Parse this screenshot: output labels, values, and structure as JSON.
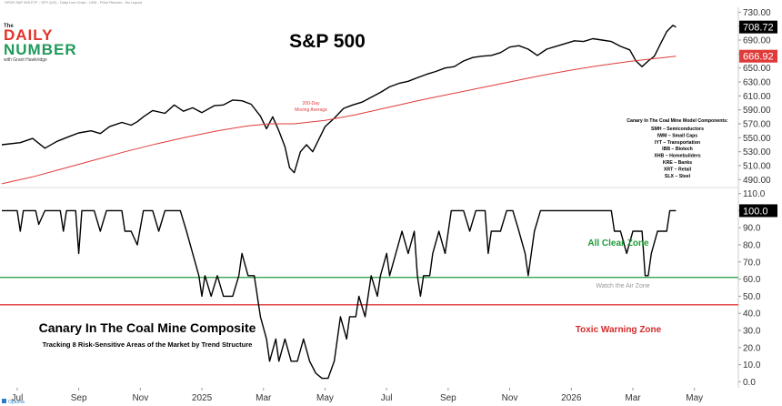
{
  "header_note": "SPDR S&P 500 ETF - SPY (US) - Daily Line Chart - USD - Price Returns - No Layout",
  "logo": {
    "the": "The",
    "line1": "DAILY",
    "line2": "NUMBER",
    "byline": "with Grant Hawkridge",
    "colors": {
      "daily": "#e4322b",
      "number": "#1f9a5a",
      "text": "#222222"
    }
  },
  "footer_brand": "Optuma",
  "chart_data": [
    {
      "type": "line",
      "title": "S&P 500",
      "ylim": [
        480,
        737
      ],
      "yticks": [
        490,
        510,
        530,
        550,
        570,
        590,
        610,
        630,
        650,
        670,
        690,
        710,
        730
      ],
      "grid": false,
      "x_labels": [
        "Jul",
        "Sep",
        "Nov",
        "2025",
        "Mar",
        "May",
        "Jul",
        "Sep",
        "Nov",
        "2026",
        "Mar",
        "May"
      ],
      "x_label_positions": [
        0.5,
        2.5,
        4.5,
        6.5,
        8.5,
        10.5,
        12.5,
        14.5,
        16.5,
        18.5,
        20.5,
        22.5
      ],
      "xlim": [
        0,
        23.1
      ],
      "series": [
        {
          "color": "#000000",
          "points": [
            [
              0,
              540
            ],
            [
              0.6,
              543
            ],
            [
              1.0,
              549
            ],
            [
              1.4,
              535
            ],
            [
              1.8,
              545
            ],
            [
              2.2,
              552
            ],
            [
              2.5,
              557
            ],
            [
              2.9,
              560
            ],
            [
              3.2,
              556
            ],
            [
              3.5,
              566
            ],
            [
              3.9,
              572
            ],
            [
              4.2,
              568
            ],
            [
              4.4,
              573
            ],
            [
              4.6,
              580
            ],
            [
              4.9,
              589
            ],
            [
              5.3,
              585
            ],
            [
              5.6,
              597
            ],
            [
              5.9,
              588
            ],
            [
              6.2,
              593
            ],
            [
              6.5,
              586
            ],
            [
              6.9,
              596
            ],
            [
              7.2,
              597
            ],
            [
              7.5,
              604
            ],
            [
              7.8,
              603
            ],
            [
              8.1,
              598
            ],
            [
              8.4,
              581
            ],
            [
              8.6,
              563
            ],
            [
              8.8,
              580
            ],
            [
              9.0,
              560
            ],
            [
              9.2,
              537
            ],
            [
              9.35,
              507
            ],
            [
              9.5,
              500
            ],
            [
              9.7,
              530
            ],
            [
              9.9,
              540
            ],
            [
              10.1,
              530
            ],
            [
              10.3,
              548
            ],
            [
              10.5,
              566
            ],
            [
              10.8,
              578
            ],
            [
              11.1,
              592
            ],
            [
              11.4,
              597
            ],
            [
              11.7,
              601
            ],
            [
              12.0,
              608
            ],
            [
              12.3,
              615
            ],
            [
              12.6,
              623
            ],
            [
              12.9,
              628
            ],
            [
              13.2,
              631
            ],
            [
              13.5,
              636
            ],
            [
              13.8,
              641
            ],
            [
              14.1,
              645
            ],
            [
              14.4,
              650
            ],
            [
              14.7,
              652
            ],
            [
              15.0,
              660
            ],
            [
              15.3,
              665
            ],
            [
              15.6,
              667
            ],
            [
              15.9,
              668
            ],
            [
              16.2,
              672
            ],
            [
              16.5,
              680
            ],
            [
              16.8,
              682
            ],
            [
              17.1,
              677
            ],
            [
              17.4,
              668
            ],
            [
              17.7,
              677
            ],
            [
              18.0,
              681
            ],
            [
              18.3,
              685
            ],
            [
              18.6,
              689
            ],
            [
              18.9,
              688
            ],
            [
              19.2,
              692
            ],
            [
              19.5,
              690
            ],
            [
              19.8,
              688
            ],
            [
              20.1,
              681
            ],
            [
              20.4,
              676
            ],
            [
              20.6,
              660
            ],
            [
              20.8,
              652
            ],
            [
              21.0,
              660
            ],
            [
              21.2,
              667
            ],
            [
              21.4,
              685
            ],
            [
              21.6,
              702
            ],
            [
              21.8,
              711
            ],
            [
              21.9,
              708.72
            ]
          ]
        },
        {
          "name": "200-Day Moving Average",
          "color": "#e03b3b",
          "points": [
            [
              0,
              484
            ],
            [
              1,
              494
            ],
            [
              2,
              506
            ],
            [
              3,
              518
            ],
            [
              4,
              530
            ],
            [
              5,
              541
            ],
            [
              6,
              551
            ],
            [
              7,
              560
            ],
            [
              8,
              567
            ],
            [
              8.7,
              570
            ],
            [
              9.5,
              570
            ],
            [
              10.5,
              575
            ],
            [
              11.5,
              583
            ],
            [
              12.5,
              593
            ],
            [
              13.5,
              603
            ],
            [
              14.5,
              612
            ],
            [
              15.5,
              621
            ],
            [
              16.5,
              630
            ],
            [
              17.5,
              639
            ],
            [
              18.5,
              647
            ],
            [
              19.5,
              654
            ],
            [
              20.5,
              660
            ],
            [
              21.9,
              666.92
            ]
          ]
        }
      ],
      "last_values": [
        {
          "value": "708.72",
          "y": 708.72,
          "bg": "#000000",
          "fg": "#ffffff"
        },
        {
          "value": "666.92",
          "y": 666.92,
          "bg": "#e03b3b",
          "fg": "#ffffff"
        }
      ],
      "annotations": {
        "ma_label_line1": "200-Day",
        "ma_label_line2": "Moving Average",
        "components_title": "Canary In The Coal Mine Model Components:",
        "components": [
          "SMH – Semiconductors",
          "IWM – Small Caps",
          "IYT – Transportation",
          "IBB – Biotech",
          "XHB – Homebuilders",
          "KRE – Banks",
          "XRT – Retail",
          "SLX – Steel"
        ]
      }
    },
    {
      "type": "line",
      "title": "Canary In The Coal Mine Composite",
      "subtitle": "Tracking 8 Risk-Sensitive Areas of the Market by Trend Structure",
      "ylim": [
        -3,
        113
      ],
      "yticks": [
        0,
        10,
        20,
        30,
        40,
        50,
        60,
        70,
        80,
        90,
        100,
        110
      ],
      "grid": false,
      "xlim": [
        0,
        23.1
      ],
      "series": [
        {
          "color": "#000000",
          "points": [
            [
              0,
              100
            ],
            [
              0.5,
              100
            ],
            [
              0.6,
              88
            ],
            [
              0.7,
              100
            ],
            [
              1.1,
              100
            ],
            [
              1.2,
              92
            ],
            [
              1.4,
              100
            ],
            [
              1.9,
              100
            ],
            [
              2.0,
              88
            ],
            [
              2.1,
              100
            ],
            [
              2.4,
              100
            ],
            [
              2.5,
              75
            ],
            [
              2.6,
              100
            ],
            [
              3.0,
              100
            ],
            [
              3.2,
              88
            ],
            [
              3.4,
              100
            ],
            [
              3.9,
              100
            ],
            [
              4.0,
              88
            ],
            [
              4.2,
              88
            ],
            [
              4.4,
              80
            ],
            [
              4.6,
              100
            ],
            [
              4.9,
              100
            ],
            [
              5.1,
              88
            ],
            [
              5.3,
              100
            ],
            [
              5.8,
              100
            ],
            [
              6.0,
              88
            ],
            [
              6.2,
              75
            ],
            [
              6.4,
              62
            ],
            [
              6.5,
              50
            ],
            [
              6.6,
              62
            ],
            [
              6.8,
              50
            ],
            [
              7.0,
              62
            ],
            [
              7.2,
              50
            ],
            [
              7.5,
              50
            ],
            [
              7.7,
              62
            ],
            [
              7.8,
              75
            ],
            [
              8.0,
              62
            ],
            [
              8.2,
              62
            ],
            [
              8.3,
              50
            ],
            [
              8.4,
              38
            ],
            [
              8.6,
              25
            ],
            [
              8.7,
              12
            ],
            [
              8.9,
              25
            ],
            [
              9.0,
              12
            ],
            [
              9.2,
              25
            ],
            [
              9.4,
              12
            ],
            [
              9.6,
              12
            ],
            [
              9.8,
              25
            ],
            [
              10.0,
              12
            ],
            [
              10.2,
              5
            ],
            [
              10.4,
              2
            ],
            [
              10.6,
              2
            ],
            [
              10.8,
              12
            ],
            [
              10.9,
              25
            ],
            [
              11.0,
              38
            ],
            [
              11.2,
              25
            ],
            [
              11.3,
              38
            ],
            [
              11.5,
              38
            ],
            [
              11.6,
              50
            ],
            [
              11.8,
              38
            ],
            [
              11.9,
              50
            ],
            [
              12.0,
              62
            ],
            [
              12.2,
              50
            ],
            [
              12.3,
              62
            ],
            [
              12.5,
              75
            ],
            [
              12.6,
              62
            ],
            [
              12.8,
              75
            ],
            [
              13.0,
              88
            ],
            [
              13.2,
              75
            ],
            [
              13.4,
              88
            ],
            [
              13.5,
              62
            ],
            [
              13.6,
              50
            ],
            [
              13.7,
              62
            ],
            [
              13.9,
              62
            ],
            [
              14.0,
              75
            ],
            [
              14.2,
              88
            ],
            [
              14.4,
              75
            ],
            [
              14.6,
              100
            ],
            [
              15.0,
              100
            ],
            [
              15.2,
              88
            ],
            [
              15.4,
              100
            ],
            [
              15.7,
              100
            ],
            [
              15.8,
              75
            ],
            [
              15.9,
              88
            ],
            [
              16.2,
              88
            ],
            [
              16.4,
              100
            ],
            [
              16.6,
              100
            ],
            [
              16.8,
              88
            ],
            [
              17.0,
              75
            ],
            [
              17.1,
              62
            ],
            [
              17.2,
              75
            ],
            [
              17.3,
              88
            ],
            [
              17.5,
              100
            ],
            [
              19.4,
              100
            ],
            [
              19.6,
              100
            ],
            [
              19.8,
              100
            ],
            [
              19.9,
              88
            ],
            [
              20.1,
              88
            ],
            [
              20.3,
              75
            ],
            [
              20.5,
              88
            ],
            [
              20.6,
              88
            ],
            [
              20.8,
              88
            ],
            [
              20.9,
              62
            ],
            [
              21.0,
              62
            ],
            [
              21.1,
              75
            ],
            [
              21.3,
              88
            ],
            [
              21.6,
              88
            ],
            [
              21.7,
              100
            ],
            [
              21.9,
              100
            ]
          ]
        }
      ],
      "reference_lines": [
        {
          "y": 61,
          "color": "#1f9a3a"
        },
        {
          "y": 45,
          "color": "#e03b3b"
        }
      ],
      "last_values": [
        {
          "value": "100.0",
          "y": 100,
          "bg": "#000000",
          "fg": "#ffffff"
        }
      ],
      "zones": {
        "all_clear": "All Clear Zone",
        "watch": "Watch the Air Zone",
        "toxic": "Toxic Warning Zone"
      }
    }
  ]
}
